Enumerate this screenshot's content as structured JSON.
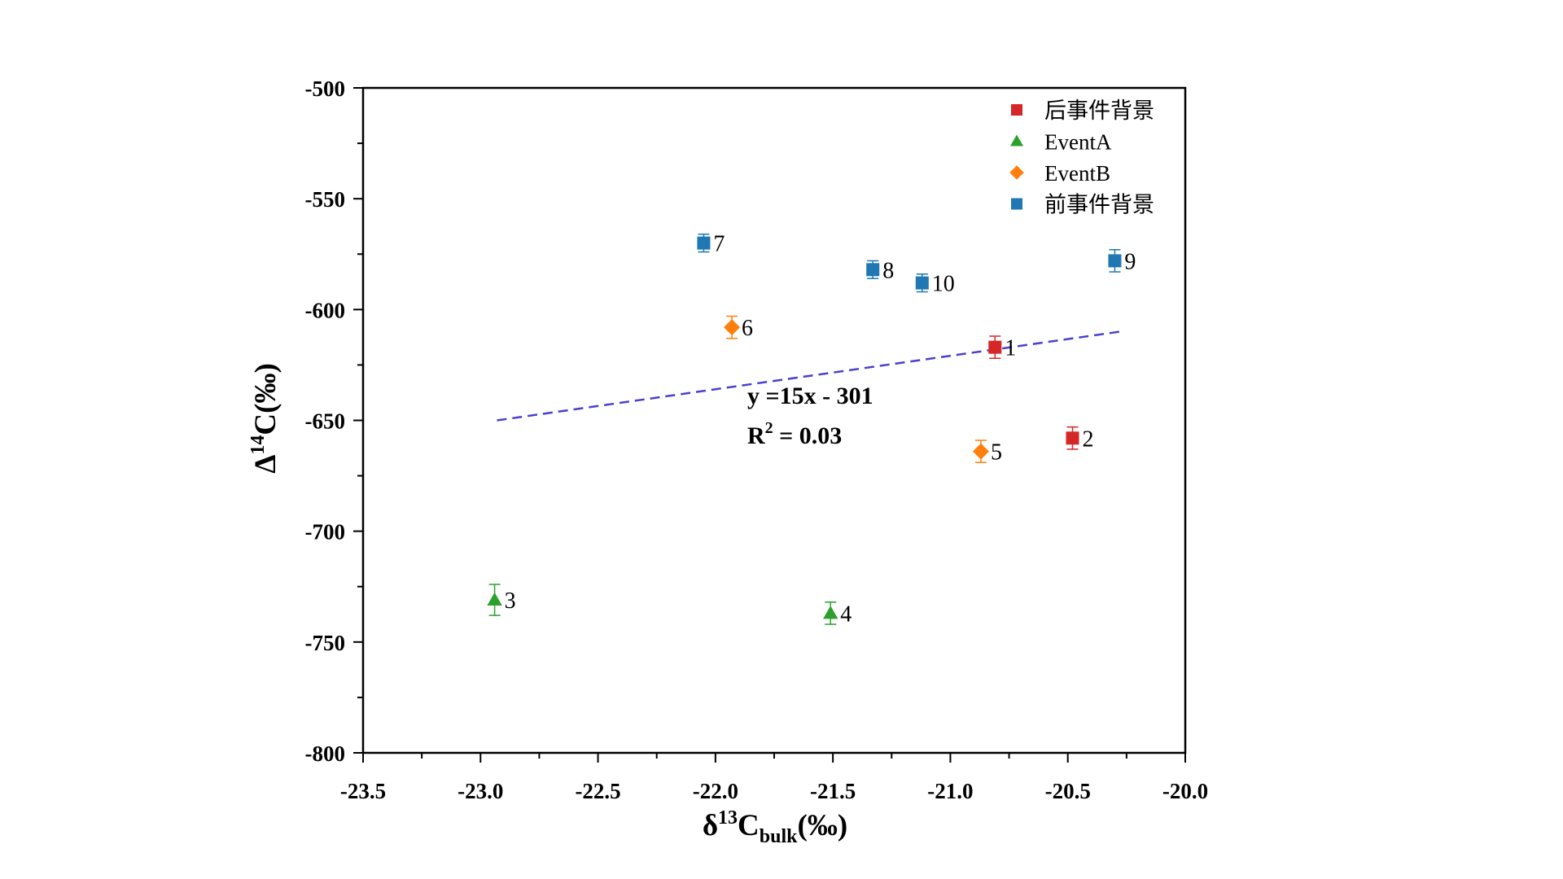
{
  "chart_data": {
    "type": "scatter",
    "xlabel": {
      "prefix": "δ",
      "sup": "13",
      "main": "C",
      "sub": "bulk",
      "suffix": "(‰)"
    },
    "ylabel": {
      "prefix": "Δ",
      "sup": "14",
      "main": "C(‰)"
    },
    "xlim": [
      -23.5,
      -20.0
    ],
    "ylim": [
      -800,
      -500
    ],
    "x_ticks": [
      -23.5,
      -23.0,
      -22.5,
      -22.0,
      -21.5,
      -21.0,
      -20.5,
      -20.0
    ],
    "x_tick_labels": [
      "-23.5",
      "-23.0",
      "-22.5",
      "-22.0",
      "-21.5",
      "-21.0",
      "-20.5",
      "-20.0"
    ],
    "y_ticks": [
      -800,
      -750,
      -700,
      -650,
      -600,
      -550,
      -500
    ],
    "y_tick_labels": [
      "-800",
      "-750",
      "-700",
      "-650",
      "-600",
      "-550",
      "-500"
    ],
    "series": [
      {
        "name": "后事件背景",
        "marker": "square",
        "color": "#d62728",
        "points": [
          {
            "x": -20.81,
            "y": -617,
            "err": 5,
            "label": "1"
          },
          {
            "x": -20.48,
            "y": -658,
            "err": 5,
            "label": "2"
          }
        ]
      },
      {
        "name": "EventA",
        "marker": "triangle",
        "color": "#2ca02c",
        "points": [
          {
            "x": -22.94,
            "y": -731,
            "err": 7,
            "label": "3"
          },
          {
            "x": -21.51,
            "y": -737,
            "err": 5,
            "label": "4"
          }
        ]
      },
      {
        "name": "EventB",
        "marker": "diamond",
        "color": "#ff7f0e",
        "points": [
          {
            "x": -20.87,
            "y": -664,
            "err": 5,
            "label": "5"
          },
          {
            "x": -21.93,
            "y": -608,
            "err": 5,
            "label": "6"
          }
        ]
      },
      {
        "name": "前事件背景",
        "marker": "square",
        "color": "#1f77b4",
        "points": [
          {
            "x": -22.05,
            "y": -570,
            "err": 4,
            "label": "7"
          },
          {
            "x": -21.33,
            "y": -582,
            "err": 4,
            "label": "8"
          },
          {
            "x": -21.12,
            "y": -588,
            "err": 4,
            "label": "10"
          },
          {
            "x": -20.3,
            "y": -578,
            "err": 5,
            "label": "9"
          }
        ]
      }
    ],
    "fit_line": {
      "x": [
        -22.93,
        -20.28
      ],
      "y": [
        -650,
        -610
      ],
      "color": "#4b3fcf",
      "style": "dashed"
    },
    "annotation": {
      "equation": "y =15x - 301",
      "r2_prefix": "R",
      "r2_sup": "2",
      "r2_value": " = 0.03"
    },
    "legend_position": "top-right",
    "grid": false
  }
}
